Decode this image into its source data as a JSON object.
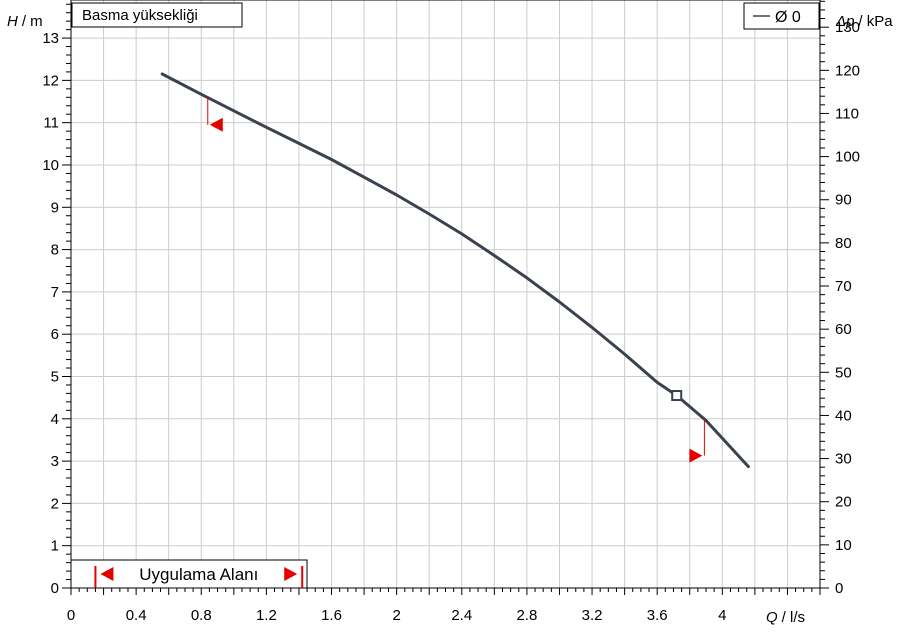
{
  "chart_data": {
    "type": "line",
    "title": "Basma yüksekliği",
    "y_left_label": {
      "symbol": "H",
      "unit": "/ m"
    },
    "y_right_label": {
      "symbol": "Δp",
      "unit": "/ kPa"
    },
    "x_label": {
      "symbol": "Q",
      "unit": "/ l/s"
    },
    "xlim": [
      0,
      4.6
    ],
    "ylim": [
      0,
      13.9
    ],
    "y_right_lim": [
      0,
      136.3
    ],
    "grid": true,
    "x_ticks": [
      0,
      0.4,
      0.8,
      1.2,
      1.6,
      2,
      2.4,
      2.8,
      3.2,
      3.6,
      4
    ],
    "x_tick_labels": [
      "0",
      "0.4",
      "0.8",
      "1.2",
      "1.6",
      "2",
      "2.4",
      "2.8",
      "3.2",
      "3.6",
      "4"
    ],
    "y_ticks": [
      0,
      1,
      2,
      3,
      4,
      5,
      6,
      7,
      8,
      9,
      10,
      11,
      12,
      13
    ],
    "y_tick_labels": [
      "0",
      "1",
      "2",
      "3",
      "4",
      "5",
      "6",
      "7",
      "8",
      "9",
      "10",
      "11",
      "12",
      "13"
    ],
    "y_right_ticks": [
      0,
      10,
      20,
      30,
      40,
      50,
      60,
      70,
      80,
      90,
      100,
      110,
      120,
      130
    ],
    "y_right_tick_labels": [
      "0",
      "10",
      "20",
      "30",
      "40",
      "50",
      "60",
      "70",
      "80",
      "90",
      "100",
      "110",
      "120",
      "130"
    ],
    "legend": {
      "position": "top-right",
      "entries": [
        {
          "name": "Ø 0",
          "color": "#3a4250"
        }
      ]
    },
    "series": [
      {
        "name": "Ø 0",
        "color": "#3a4250",
        "x": [
          0.56,
          0.8,
          1.0,
          1.2,
          1.4,
          1.6,
          1.8,
          2.0,
          2.2,
          2.4,
          2.6,
          2.8,
          3.0,
          3.2,
          3.4,
          3.6,
          3.72,
          3.9,
          4.16
        ],
        "y": [
          12.15,
          11.67,
          11.28,
          10.89,
          10.51,
          10.13,
          9.71,
          9.29,
          8.84,
          8.37,
          7.86,
          7.33,
          6.76,
          6.16,
          5.53,
          4.86,
          4.55,
          3.96,
          2.87
        ]
      }
    ],
    "operating_point": {
      "x": 3.72,
      "y": 4.55
    },
    "limit_markers": [
      {
        "x": 0.84,
        "y_top": 11.6,
        "y_bottom": 10.95,
        "direction": "left"
      },
      {
        "x": 3.89,
        "y_top": 3.98,
        "y_bottom": 3.13,
        "direction": "right"
      }
    ],
    "application_range": {
      "label": "Uygulama Alanı",
      "from": 0.15,
      "to": 1.42
    },
    "colors": {
      "curve": "#3a4250",
      "grid": "#cccccc",
      "marker": "#e50000",
      "axis": "#000000"
    }
  }
}
